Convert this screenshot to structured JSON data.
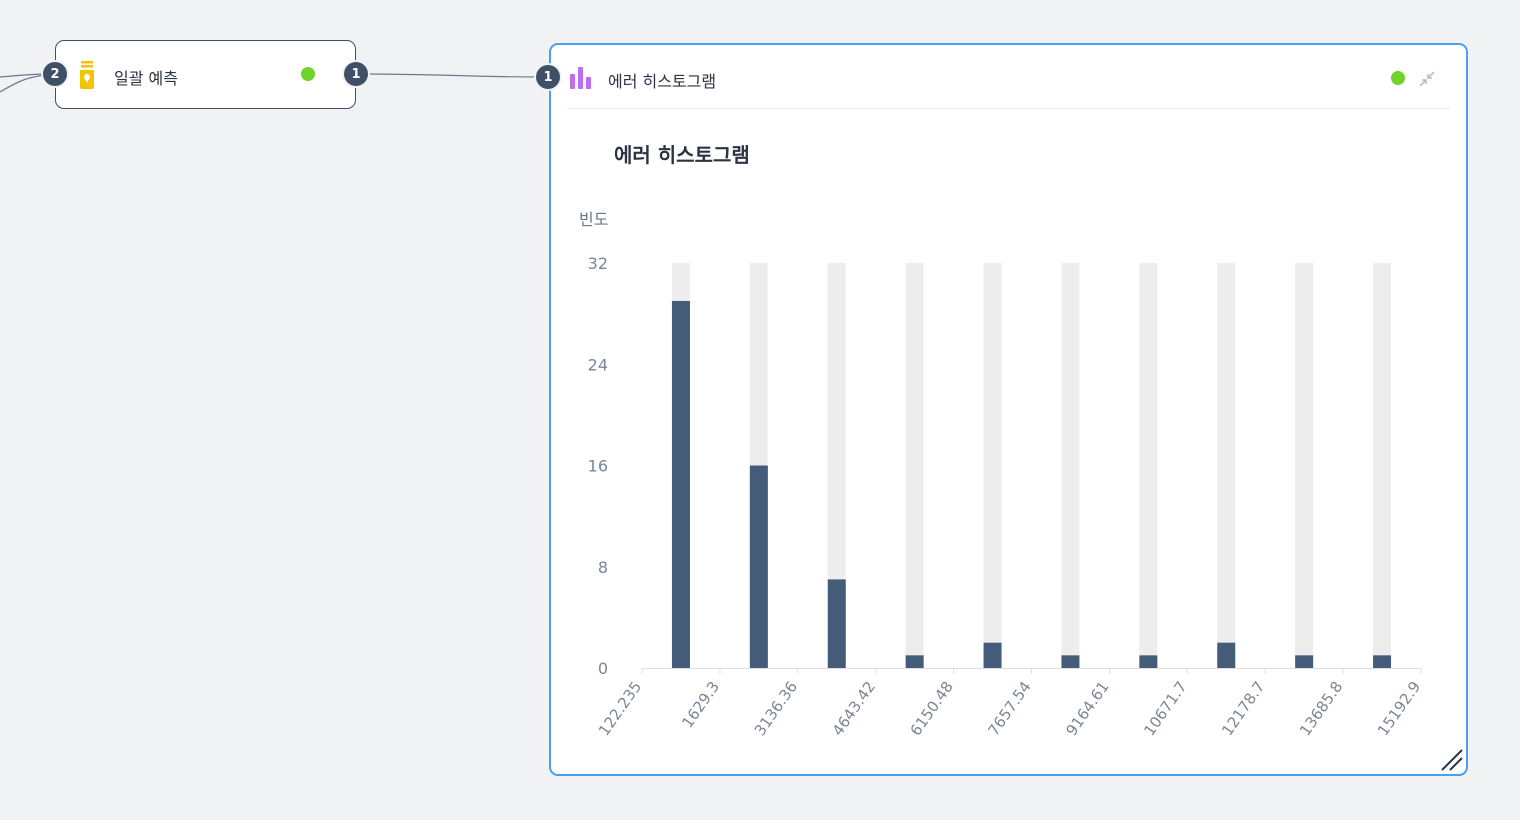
{
  "nodes": {
    "batch_predict": {
      "title": "일괄 예측",
      "input_port": "2",
      "output_port": "1",
      "icon": "bottle-icon",
      "status_color": "#6ed42b"
    },
    "error_histogram": {
      "title": "에러 히스토그램",
      "input_port": "1",
      "icon": "bar-chart-icon",
      "status_color": "#6ed42b"
    }
  },
  "colors": {
    "port": "#3e4f66",
    "selected_border": "#4b9ff0",
    "bar": "#445b7a",
    "bar_track": "#ededed"
  },
  "chart_data": {
    "type": "bar",
    "title": "에러 히스토그램",
    "ylabel": "빈도",
    "xlabel": "",
    "ylim": [
      0,
      32
    ],
    "yticks": [
      0,
      8,
      16,
      24,
      32
    ],
    "x_tick_labels": [
      "122.235",
      "1629.3",
      "3136.36",
      "4643.42",
      "6150.48",
      "7657.54",
      "9164.61",
      "10671.7",
      "12178.7",
      "13685.8",
      "15192.9"
    ],
    "values": [
      29,
      16,
      7,
      1,
      2,
      1,
      1,
      2,
      1,
      1
    ],
    "grid": false,
    "legend": "none"
  }
}
